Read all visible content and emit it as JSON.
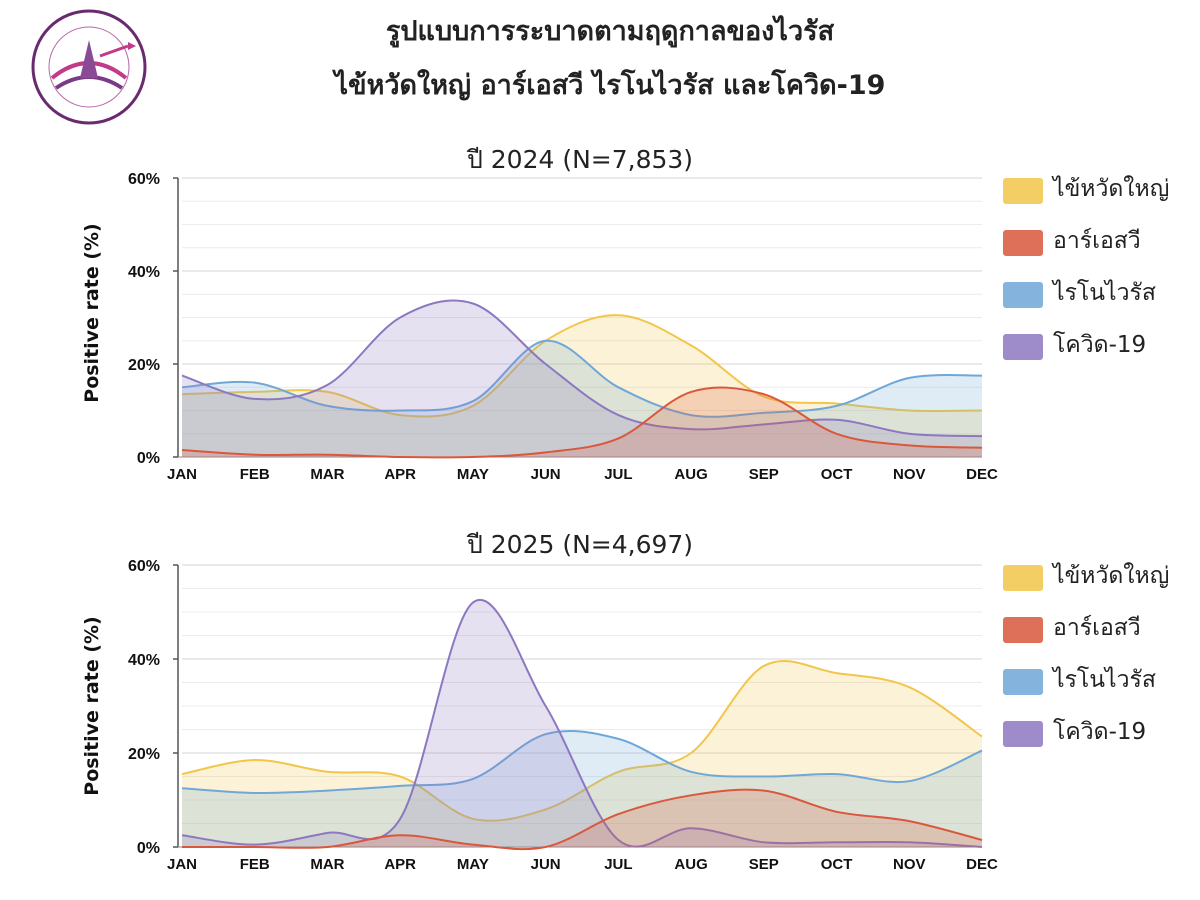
{
  "header": {
    "title_line1": "รูปแบบการระบาดตามฤดูกาลของไวรัส",
    "title_line2": "ไข้หวัดใหญ่ อาร์เอสวี ไรโนไวรัส และโควิด-19"
  },
  "colors": {
    "flu": "#f2c64a",
    "rsv": "#d9583d",
    "rhino": "#6fa8d8",
    "covid": "#8c78c0"
  },
  "chart_data": [
    {
      "type": "area",
      "title": "ปี 2024 (N=7,853)",
      "ylabel": "Positive rate (%)",
      "ylim": [
        0,
        60
      ],
      "yticks": [
        "0%",
        "20%",
        "40%",
        "60%"
      ],
      "categories": [
        "JAN",
        "FEB",
        "MAR",
        "APR",
        "MAY",
        "JUN",
        "JUL",
        "AUG",
        "SEP",
        "OCT",
        "NOV",
        "DEC"
      ],
      "legend": "right",
      "series": [
        {
          "name": "ไข้หวัดใหญ่",
          "key": "flu",
          "values": [
            13.5,
            14,
            14,
            9,
            11,
            25,
            30.5,
            24,
            13,
            11.5,
            10,
            10
          ]
        },
        {
          "name": "อาร์เอสวี",
          "key": "rsv",
          "values": [
            1.5,
            0.5,
            0.5,
            0,
            0,
            1,
            4,
            14,
            13.5,
            5,
            2.5,
            2
          ]
        },
        {
          "name": "ไรโนไวรัส",
          "key": "rhino",
          "values": [
            15,
            16,
            11,
            10,
            12,
            25,
            15,
            9,
            9.5,
            11,
            17,
            17.5
          ]
        },
        {
          "name": "โควิด-19",
          "key": "covid",
          "values": [
            17.5,
            12.5,
            15.5,
            30,
            33,
            20,
            9,
            6,
            7,
            8,
            5,
            4.5
          ]
        }
      ]
    },
    {
      "type": "area",
      "title": "ปี 2025 (N=4,697)",
      "ylabel": "Positive rate (%)",
      "ylim": [
        0,
        60
      ],
      "yticks": [
        "0%",
        "20%",
        "40%",
        "60%"
      ],
      "categories": [
        "JAN",
        "FEB",
        "MAR",
        "APR",
        "MAY",
        "JUN",
        "JUL",
        "AUG",
        "SEP",
        "OCT",
        "NOV",
        "DEC"
      ],
      "legend": "right",
      "series": [
        {
          "name": "ไข้หวัดใหญ่",
          "key": "flu",
          "values": [
            15.5,
            18.5,
            16,
            15,
            6,
            8,
            16,
            20,
            38.5,
            37,
            34,
            23.5
          ]
        },
        {
          "name": "อาร์เอสวี",
          "key": "rsv",
          "values": [
            0,
            0,
            0,
            2.5,
            0.5,
            0,
            7,
            11,
            12,
            7.5,
            5.5,
            1.5
          ]
        },
        {
          "name": "ไรโนไวรัส",
          "key": "rhino",
          "values": [
            12.5,
            11.5,
            12,
            13,
            14.5,
            24,
            23,
            16,
            15,
            15.5,
            14,
            20.5
          ]
        },
        {
          "name": "โควิด-19",
          "key": "covid",
          "values": [
            2.5,
            0.5,
            3,
            6,
            52,
            30,
            1.5,
            4,
            1,
            1,
            1,
            0
          ]
        }
      ]
    }
  ]
}
